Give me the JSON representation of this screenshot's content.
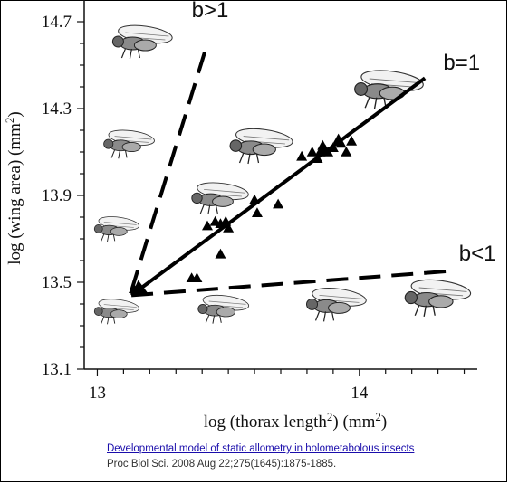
{
  "chart_data": {
    "type": "scatter",
    "xlabel": "log (thorax length",
    "xlabel_sup": "2",
    "xlabel_tail": ") (mm",
    "xlabel_sup2": "2",
    "xlabel_end": ")",
    "ylabel": "log (wing area) (mm",
    "ylabel_sup": "2",
    "ylabel_end": ")",
    "xlim": [
      12.95,
      14.45
    ],
    "ylim": [
      13.1,
      14.8
    ],
    "x_ticks": [
      13,
      14
    ],
    "x_tick_labels": [
      "13",
      "14"
    ],
    "y_ticks": [
      13.1,
      13.5,
      13.9,
      14.3,
      14.7
    ],
    "y_tick_labels": [
      "13.1",
      "13.5",
      "13.9",
      "14.3",
      "14.7"
    ],
    "grid": false,
    "series": [
      {
        "marker": "triangle",
        "x": [
          13.14,
          13.36,
          13.38,
          13.42,
          13.45,
          13.47,
          13.49,
          13.5,
          13.47,
          13.6,
          13.61,
          13.69,
          13.78,
          13.82,
          13.85,
          13.86,
          13.88,
          13.9,
          13.92,
          13.95,
          13.97,
          13.84,
          13.87,
          13.93
        ],
        "y": [
          13.47,
          13.52,
          13.52,
          13.76,
          13.78,
          13.77,
          13.78,
          13.75,
          13.63,
          13.88,
          13.82,
          13.86,
          14.08,
          14.1,
          14.1,
          14.13,
          14.1,
          14.12,
          14.16,
          14.1,
          14.15,
          14.07,
          14.11,
          14.14
        ]
      }
    ],
    "lines": [
      {
        "label": "b>1",
        "style": "dashed",
        "x": [
          13.13,
          13.42
        ],
        "y": [
          13.46,
          14.6
        ]
      },
      {
        "label": "b=1",
        "style": "solid",
        "x": [
          14.25,
          13.13
        ],
        "y": [
          14.44,
          13.44
        ]
      },
      {
        "label": "b<1",
        "style": "dashed",
        "x": [
          13.13,
          14.33
        ],
        "y": [
          13.44,
          13.55
        ]
      }
    ],
    "annotations": [
      {
        "text": "b>1",
        "x": 13.36,
        "y": 14.72
      },
      {
        "text": "b=1",
        "x": 14.32,
        "y": 14.48
      },
      {
        "text": "b<1",
        "x": 14.38,
        "y": 13.6
      }
    ],
    "fly_icons": [
      {
        "x": 13.1,
        "y": 14.6,
        "size": 1.0
      },
      {
        "x": 13.06,
        "y": 14.13,
        "size": 0.85
      },
      {
        "x": 13.02,
        "y": 13.74,
        "size": 0.75
      },
      {
        "x": 13.02,
        "y": 13.36,
        "size": 0.75
      },
      {
        "x": 13.55,
        "y": 14.12,
        "size": 1.05
      },
      {
        "x": 13.4,
        "y": 13.88,
        "size": 0.95
      },
      {
        "x": 13.42,
        "y": 13.37,
        "size": 0.85
      },
      {
        "x": 14.03,
        "y": 14.38,
        "size": 1.15
      },
      {
        "x": 13.84,
        "y": 13.39,
        "size": 1.0
      },
      {
        "x": 14.22,
        "y": 13.42,
        "size": 1.1
      }
    ]
  },
  "citation": {
    "title": "Developmental model of static allometry in holometabolous insects",
    "journal": "Proc Biol Sci. 2008 Aug 22;275(1645):1875-1885."
  }
}
